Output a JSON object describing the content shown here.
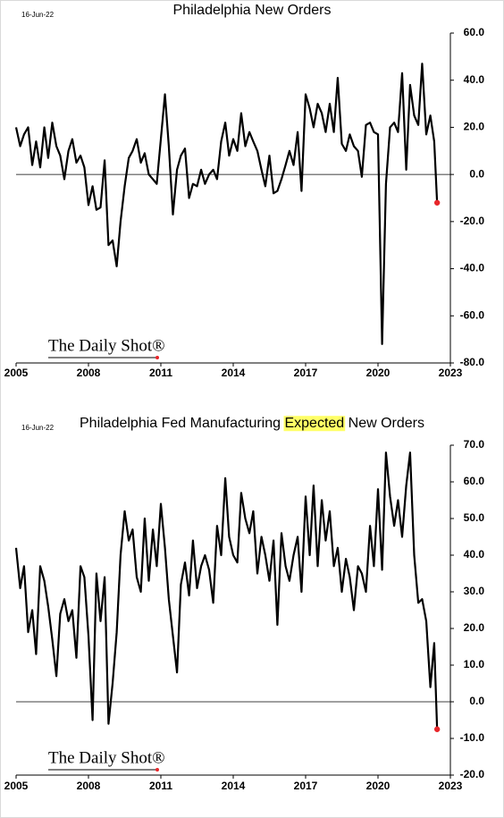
{
  "chart_data": [
    {
      "type": "line",
      "title": "Philadelphia New Orders",
      "date": "16-Jun-22",
      "watermark": "The Daily Shot®",
      "x": [
        2005,
        2005.17,
        2005.33,
        2005.5,
        2005.67,
        2005.83,
        2006,
        2006.17,
        2006.33,
        2006.5,
        2006.67,
        2006.83,
        2007,
        2007.17,
        2007.33,
        2007.5,
        2007.67,
        2007.83,
        2008,
        2008.17,
        2008.33,
        2008.5,
        2008.67,
        2008.83,
        2009,
        2009.17,
        2009.33,
        2009.5,
        2009.67,
        2009.83,
        2010,
        2010.17,
        2010.33,
        2010.5,
        2010.67,
        2010.83,
        2011,
        2011.17,
        2011.33,
        2011.5,
        2011.67,
        2011.83,
        2012,
        2012.17,
        2012.33,
        2012.5,
        2012.67,
        2012.83,
        2013,
        2013.17,
        2013.33,
        2013.5,
        2013.67,
        2013.83,
        2014,
        2014.17,
        2014.33,
        2014.5,
        2014.67,
        2014.83,
        2015,
        2015.17,
        2015.33,
        2015.5,
        2015.67,
        2015.83,
        2016,
        2016.17,
        2016.33,
        2016.5,
        2016.67,
        2016.83,
        2017,
        2017.17,
        2017.33,
        2017.5,
        2017.67,
        2017.83,
        2018,
        2018.17,
        2018.33,
        2018.5,
        2018.67,
        2018.83,
        2019,
        2019.17,
        2019.33,
        2019.5,
        2019.67,
        2019.83,
        2020,
        2020.17,
        2020.33,
        2020.5,
        2020.67,
        2020.83,
        2021,
        2021.17,
        2021.33,
        2021.5,
        2021.67,
        2021.83,
        2022,
        2022.17,
        2022.33,
        2022.45
      ],
      "series": [
        {
          "name": "Philadelphia New Orders",
          "color": "#000000",
          "values": [
            20,
            12,
            17,
            20,
            4,
            14,
            3,
            20,
            7,
            22,
            12,
            8,
            -2,
            10,
            15,
            5,
            8,
            3,
            -13,
            -5,
            -15,
            -14,
            6,
            -30,
            -28,
            -39,
            -20,
            -5,
            7,
            10,
            15,
            5,
            9,
            0,
            -2,
            -4,
            15,
            34,
            12,
            -17,
            2,
            8,
            11,
            -10,
            -4,
            -5,
            2,
            -4,
            0,
            2,
            -2,
            14,
            22,
            8,
            15,
            10,
            26,
            12,
            18,
            14,
            10,
            2,
            -5,
            8,
            -8,
            -7,
            -2,
            4,
            10,
            4,
            18,
            -7,
            34,
            28,
            20,
            30,
            26,
            18,
            30,
            18,
            41,
            13,
            10,
            17,
            12,
            10,
            -1,
            21,
            22,
            18,
            17,
            -72,
            -4,
            20,
            22,
            18,
            43,
            2,
            38,
            25,
            21,
            47,
            17,
            25,
            14,
            -12
          ]
        }
      ],
      "last_point_color": "#e8262a",
      "xlim": [
        2005,
        2023
      ],
      "xticks": [
        2005,
        2008,
        2011,
        2014,
        2017,
        2020,
        2023
      ],
      "ylim": [
        -80,
        60
      ],
      "yticks": [
        {
          "value": -80,
          "label": "-80.0"
        },
        {
          "value": -60,
          "label": "-60.0"
        },
        {
          "value": -40,
          "label": "-40.0"
        },
        {
          "value": -20,
          "label": "-20.0"
        },
        {
          "value": 0,
          "label": "0.0"
        },
        {
          "value": 20,
          "label": "20.0"
        },
        {
          "value": 40,
          "label": "40.0"
        },
        {
          "value": 60,
          "label": "60.0"
        }
      ]
    },
    {
      "type": "line",
      "title": "Philadelphia Fed Manufacturing Expected New Orders",
      "highlight_word_index": 3,
      "highlight_color": "#ffff66",
      "date": "16-Jun-22",
      "watermark": "The Daily Shot®",
      "x": [
        2005,
        2005.17,
        2005.33,
        2005.5,
        2005.67,
        2005.83,
        2006,
        2006.17,
        2006.33,
        2006.5,
        2006.67,
        2006.83,
        2007,
        2007.17,
        2007.33,
        2007.5,
        2007.67,
        2007.83,
        2008,
        2008.17,
        2008.33,
        2008.5,
        2008.67,
        2008.83,
        2009,
        2009.17,
        2009.33,
        2009.5,
        2009.67,
        2009.83,
        2010,
        2010.17,
        2010.33,
        2010.5,
        2010.67,
        2010.83,
        2011,
        2011.17,
        2011.33,
        2011.5,
        2011.67,
        2011.83,
        2012,
        2012.17,
        2012.33,
        2012.5,
        2012.67,
        2012.83,
        2013,
        2013.17,
        2013.33,
        2013.5,
        2013.67,
        2013.83,
        2014,
        2014.17,
        2014.33,
        2014.5,
        2014.67,
        2014.83,
        2015,
        2015.17,
        2015.33,
        2015.5,
        2015.67,
        2015.83,
        2016,
        2016.17,
        2016.33,
        2016.5,
        2016.67,
        2016.83,
        2017,
        2017.17,
        2017.33,
        2017.5,
        2017.67,
        2017.83,
        2018,
        2018.17,
        2018.33,
        2018.5,
        2018.67,
        2018.83,
        2019,
        2019.17,
        2019.33,
        2019.5,
        2019.67,
        2019.83,
        2020,
        2020.17,
        2020.33,
        2020.5,
        2020.67,
        2020.83,
        2021,
        2021.17,
        2021.33,
        2021.5,
        2021.67,
        2021.83,
        2022,
        2022.17,
        2022.33,
        2022.45
      ],
      "series": [
        {
          "name": "Philadelphia Fed Manufacturing Expected New Orders",
          "color": "#000000",
          "values": [
            42,
            31,
            37,
            19,
            25,
            13,
            37,
            33,
            26,
            17,
            7,
            24,
            28,
            22,
            25,
            12,
            37,
            34,
            18,
            -5,
            35,
            22,
            34,
            -6,
            5,
            19,
            40,
            52,
            44,
            47,
            34,
            30,
            50,
            33,
            47,
            37,
            54,
            42,
            28,
            18,
            8,
            32,
            38,
            29,
            44,
            31,
            37,
            40,
            36,
            27,
            48,
            40,
            61,
            45,
            40,
            38,
            57,
            50,
            46,
            52,
            35,
            45,
            40,
            33,
            44,
            21,
            46,
            37,
            33,
            40,
            45,
            30,
            56,
            40,
            59,
            37,
            55,
            44,
            52,
            37,
            42,
            30,
            39,
            34,
            25,
            37,
            35,
            30,
            48,
            37,
            58,
            36,
            68,
            56,
            48,
            55,
            45,
            59,
            68,
            40,
            27,
            28,
            22,
            4,
            16,
            -7.5
          ]
        }
      ],
      "last_point_color": "#e8262a",
      "xlim": [
        2005,
        2023
      ],
      "xticks": [
        2005,
        2008,
        2011,
        2014,
        2017,
        2020,
        2023
      ],
      "ylim": [
        -20,
        70
      ],
      "yticks": [
        {
          "value": -20,
          "label": "-20.0"
        },
        {
          "value": -10,
          "label": "-10.0"
        },
        {
          "value": 0,
          "label": "0.0"
        },
        {
          "value": 10,
          "label": "10.0"
        },
        {
          "value": 20,
          "label": "20.0"
        },
        {
          "value": 30,
          "label": "30.0"
        },
        {
          "value": 40,
          "label": "40.0"
        },
        {
          "value": 50,
          "label": "50.0"
        },
        {
          "value": 60,
          "label": "60.0"
        },
        {
          "value": 70,
          "label": "70.0"
        }
      ]
    }
  ]
}
